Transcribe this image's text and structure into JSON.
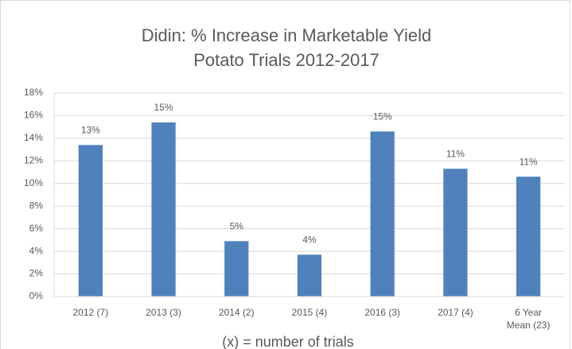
{
  "chart_data": {
    "type": "bar",
    "title": "Didin: % Increase in Marketable Yield",
    "subtitle": "Potato Trials 2012-2017",
    "annotation": "(x) = number of trials",
    "categories": [
      "2012 (7)",
      "2013 (3)",
      "2014 (2)",
      "2015 (4)",
      "2016 (3)",
      "2017 (4)",
      "6 Year Mean (23)"
    ],
    "values": [
      13.4,
      15.4,
      4.9,
      3.7,
      14.6,
      11.3,
      10.6
    ],
    "value_labels": [
      "13%",
      "15%",
      "5%",
      "4%",
      "15%",
      "11%",
      "11%"
    ],
    "color": "#4f81bd",
    "ylim": [
      0,
      18
    ],
    "yticks": [
      {
        "value": 0,
        "label": "0%"
      },
      {
        "value": 2,
        "label": "2%"
      },
      {
        "value": 4,
        "label": "4%"
      },
      {
        "value": 6,
        "label": "6%"
      },
      {
        "value": 8,
        "label": "8%"
      },
      {
        "value": 10,
        "label": "10%"
      },
      {
        "value": 12,
        "label": "12%"
      },
      {
        "value": 14,
        "label": "14%"
      },
      {
        "value": 16,
        "label": "16%"
      },
      {
        "value": 18,
        "label": "18%"
      }
    ],
    "grid": true
  }
}
